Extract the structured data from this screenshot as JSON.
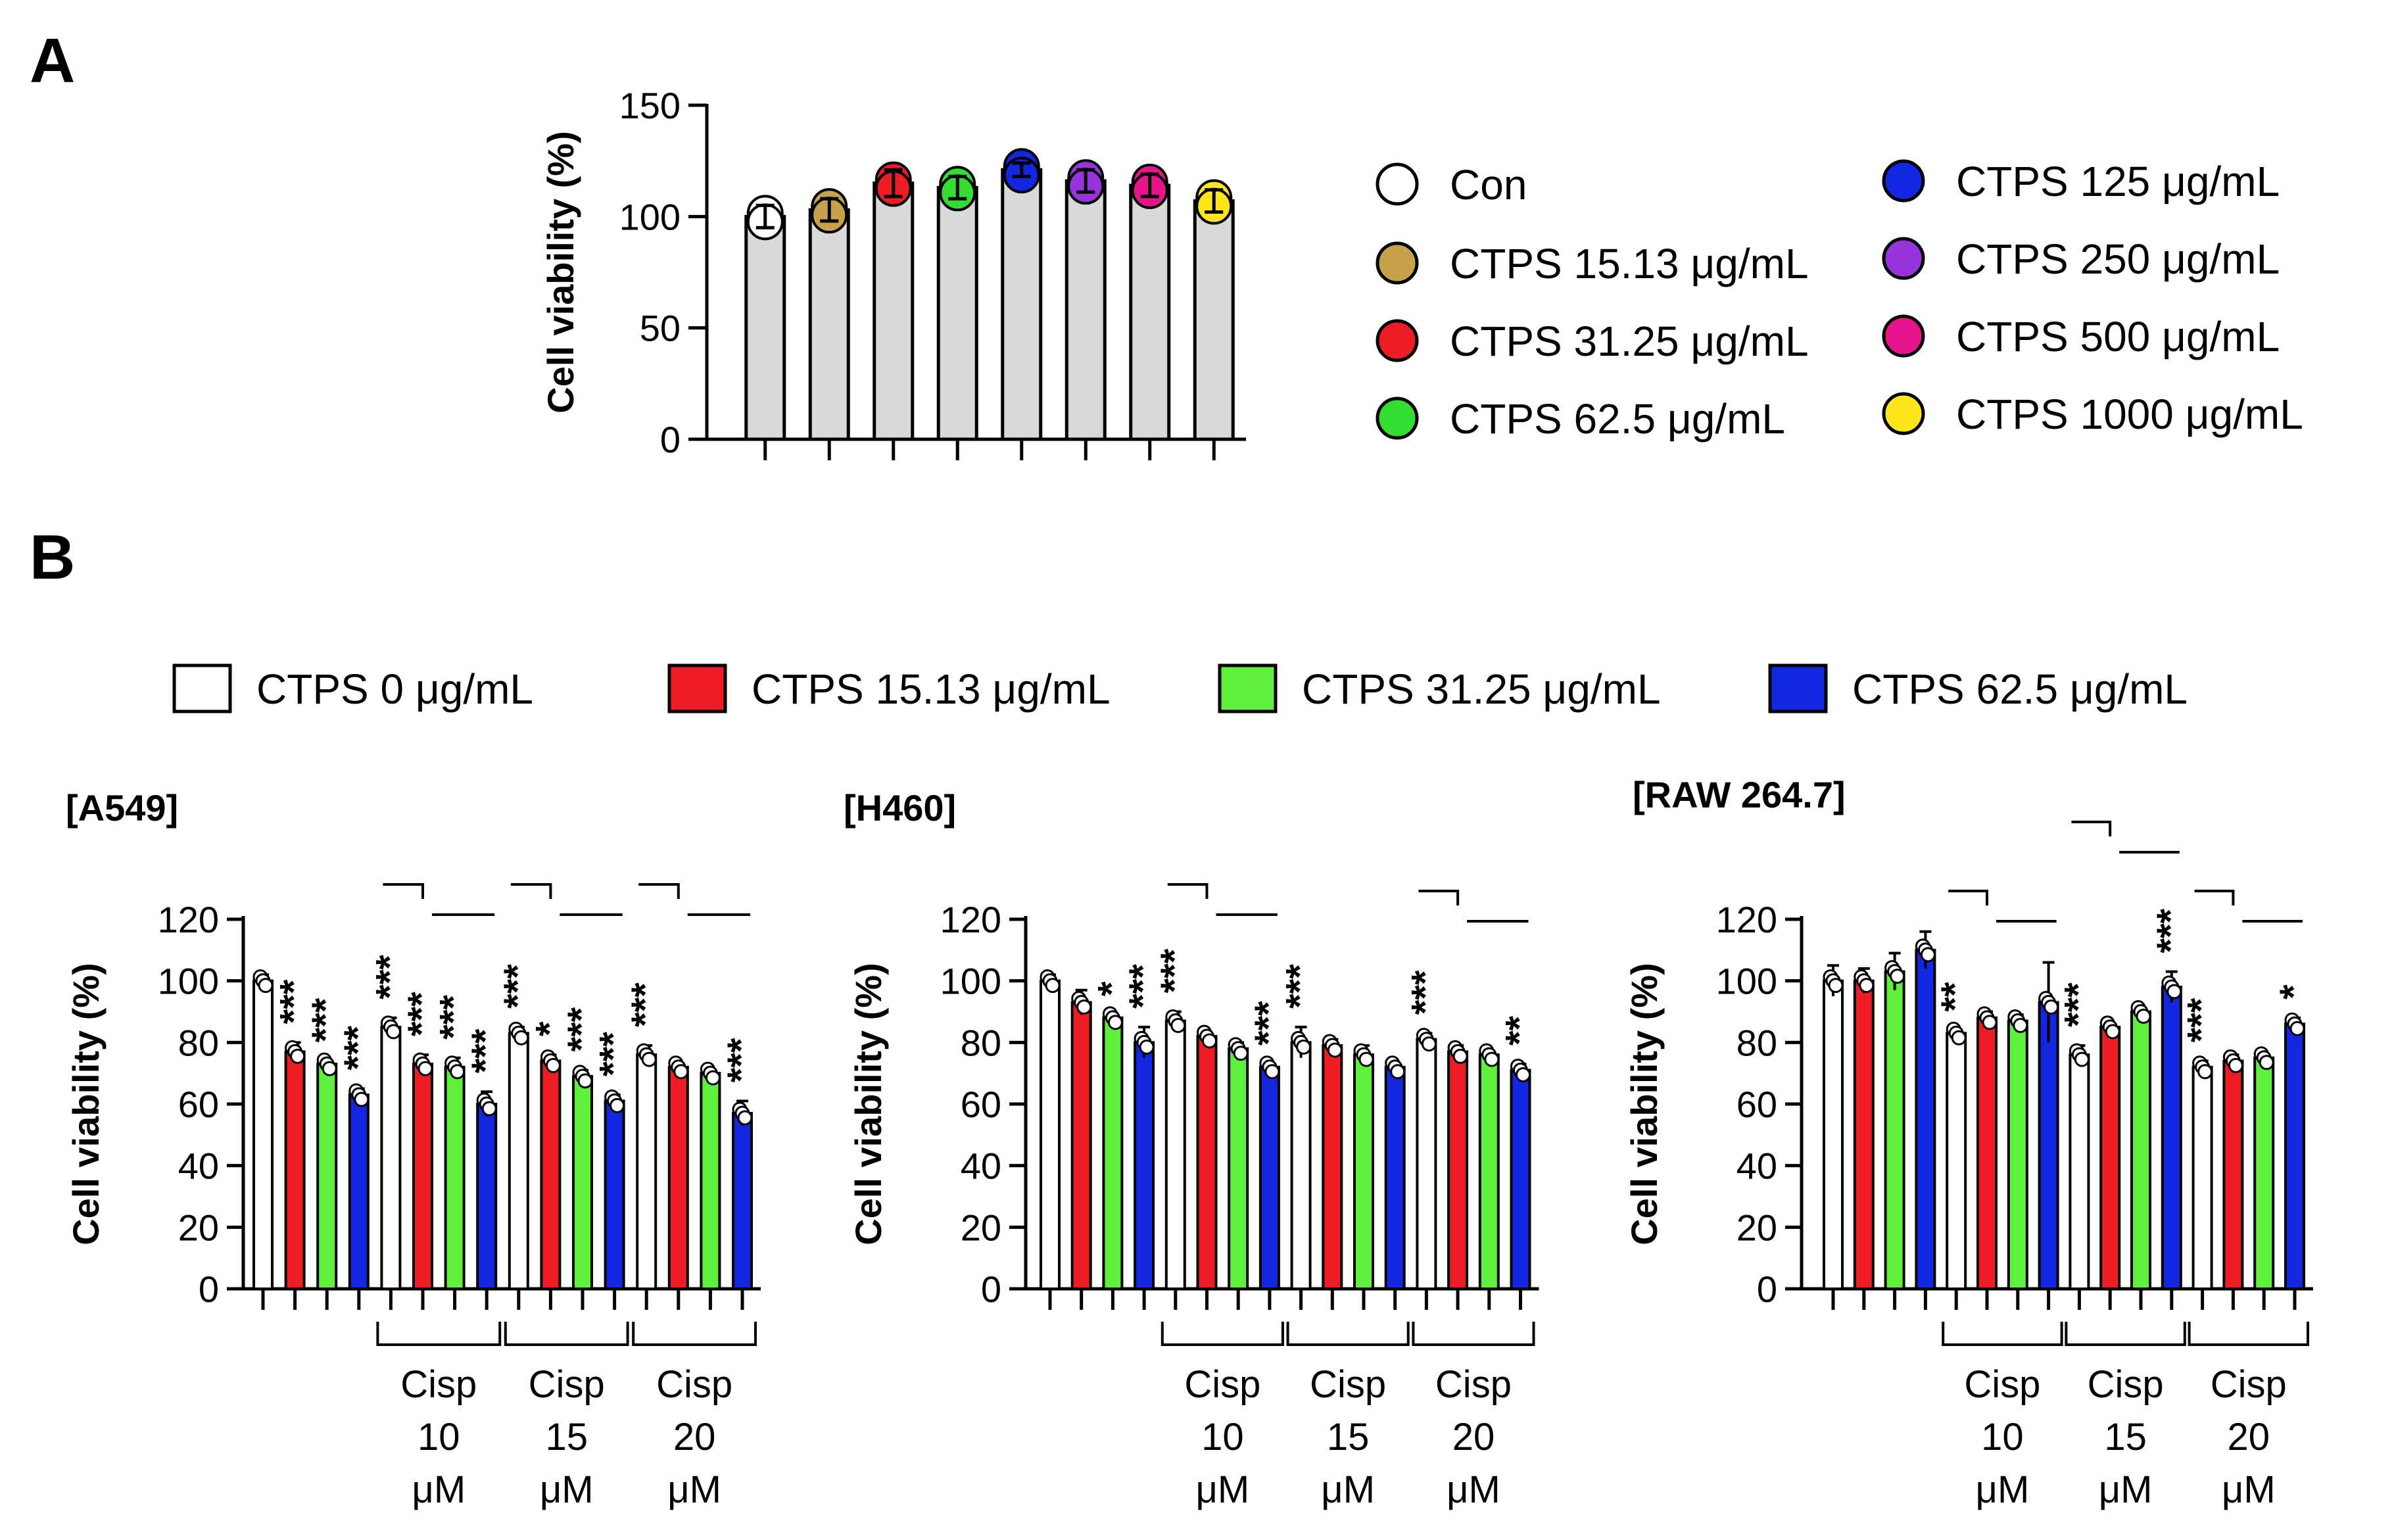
{
  "panels": {
    "a": "A",
    "b": "B"
  },
  "colors": {
    "Con": "#ffffff",
    "CTPS 15.13 μg/mL": "#c8a24a",
    "CTPS 31.25 μg/mL": "#ee1c24",
    "CTPS 62.5 μg/mL": "#33dd33",
    "CTPS 125 μg/mL": "#1326e0",
    "CTPS 250 μg/mL": "#9933dd",
    "CTPS 500 μg/mL": "#e6158c",
    "CTPS 1000 μg/mL": "#ffe61a",
    "b_0": "#ffffff",
    "b_15": "#ee1c24",
    "b_31": "#5ef03a",
    "b_62": "#1326e0"
  },
  "chart_data": [
    {
      "panel": "A",
      "type": "bar",
      "ylabel": "Cell viability (%)",
      "ylim": [
        0,
        150
      ],
      "yticks": [
        0,
        50,
        100,
        150
      ],
      "categories": [
        "Con",
        "CTPS 15.13 μg/mL",
        "CTPS 31.25 μg/mL",
        "CTPS 62.5 μg/mL",
        "CTPS 125 μg/mL",
        "CTPS 250 μg/mL",
        "CTPS 500 μg/mL",
        "CTPS 1000 μg/mL"
      ],
      "values": [
        100,
        103,
        115,
        113,
        121,
        116,
        114,
        107
      ],
      "errors": [
        5,
        5,
        6,
        5,
        3,
        5,
        5,
        5
      ],
      "legend": [
        "Con",
        "CTPS 15.13 μg/mL",
        "CTPS 31.25 μg/mL",
        "CTPS 62.5 μg/mL",
        "CTPS 125 μg/mL",
        "CTPS 250 μg/mL",
        "CTPS 500 μg/mL",
        "CTPS 1000 μg/mL"
      ]
    },
    {
      "panel": "B",
      "type": "bar",
      "legend": [
        "CTPS 0 μg/mL",
        "CTPS 15.13 μg/mL",
        "CTPS 31.25 μg/mL",
        "CTPS 62.5 μg/mL"
      ],
      "ylabel": "Cell viability (%)",
      "ylim": [
        0,
        120
      ],
      "yticks": [
        0,
        20,
        40,
        60,
        80,
        100,
        120
      ],
      "groups": [
        "Cisp 10 μM",
        "Cisp 15 μM",
        "Cisp 20 μM"
      ],
      "groups_lines": [
        [
          "Cisp",
          "10",
          "μM"
        ],
        [
          "Cisp",
          "15",
          "μM"
        ],
        [
          "Cisp",
          "20",
          "μM"
        ]
      ],
      "cells": [
        {
          "name": "[A549]",
          "values": [
            100,
            77,
            73,
            63,
            85,
            73,
            72,
            60,
            83,
            74,
            69,
            61,
            76,
            72,
            70,
            57
          ],
          "errors": [
            2,
            3,
            1,
            2,
            3,
            3,
            3,
            4,
            2,
            2,
            2,
            2,
            3,
            1,
            1,
            4
          ],
          "stars": [
            "",
            "***",
            "***",
            "***",
            "***",
            "***",
            "***",
            "***",
            "***",
            "*",
            "***",
            "***",
            "***",
            "",
            "",
            "***"
          ]
        },
        {
          "name": "[H460]",
          "values": [
            100,
            93,
            88,
            80,
            87,
            82,
            78,
            72,
            80,
            79,
            76,
            72,
            81,
            77,
            76,
            71
          ],
          "errors": [
            2,
            4,
            1,
            5,
            3,
            1,
            2,
            1,
            5,
            2,
            3,
            1,
            2,
            2,
            1,
            2
          ],
          "stars": [
            "",
            "",
            "*",
            "***",
            "***",
            "",
            "",
            "***",
            "***",
            "",
            "",
            "",
            "***",
            "",
            "",
            "**"
          ]
        },
        {
          "name": "[RAW 264.7]",
          "values": [
            100,
            100,
            103,
            110,
            83,
            88,
            87,
            93,
            76,
            85,
            90,
            98,
            72,
            74,
            75,
            86
          ],
          "errors": [
            5,
            4,
            6,
            6,
            1,
            2,
            2,
            13,
            3,
            1,
            1,
            5,
            2,
            2,
            1,
            2
          ],
          "stars": [
            "",
            "",
            "",
            "",
            "**",
            "",
            "",
            "",
            "***",
            "",
            "",
            "***",
            "***",
            "",
            "",
            "*"
          ]
        }
      ]
    }
  ]
}
